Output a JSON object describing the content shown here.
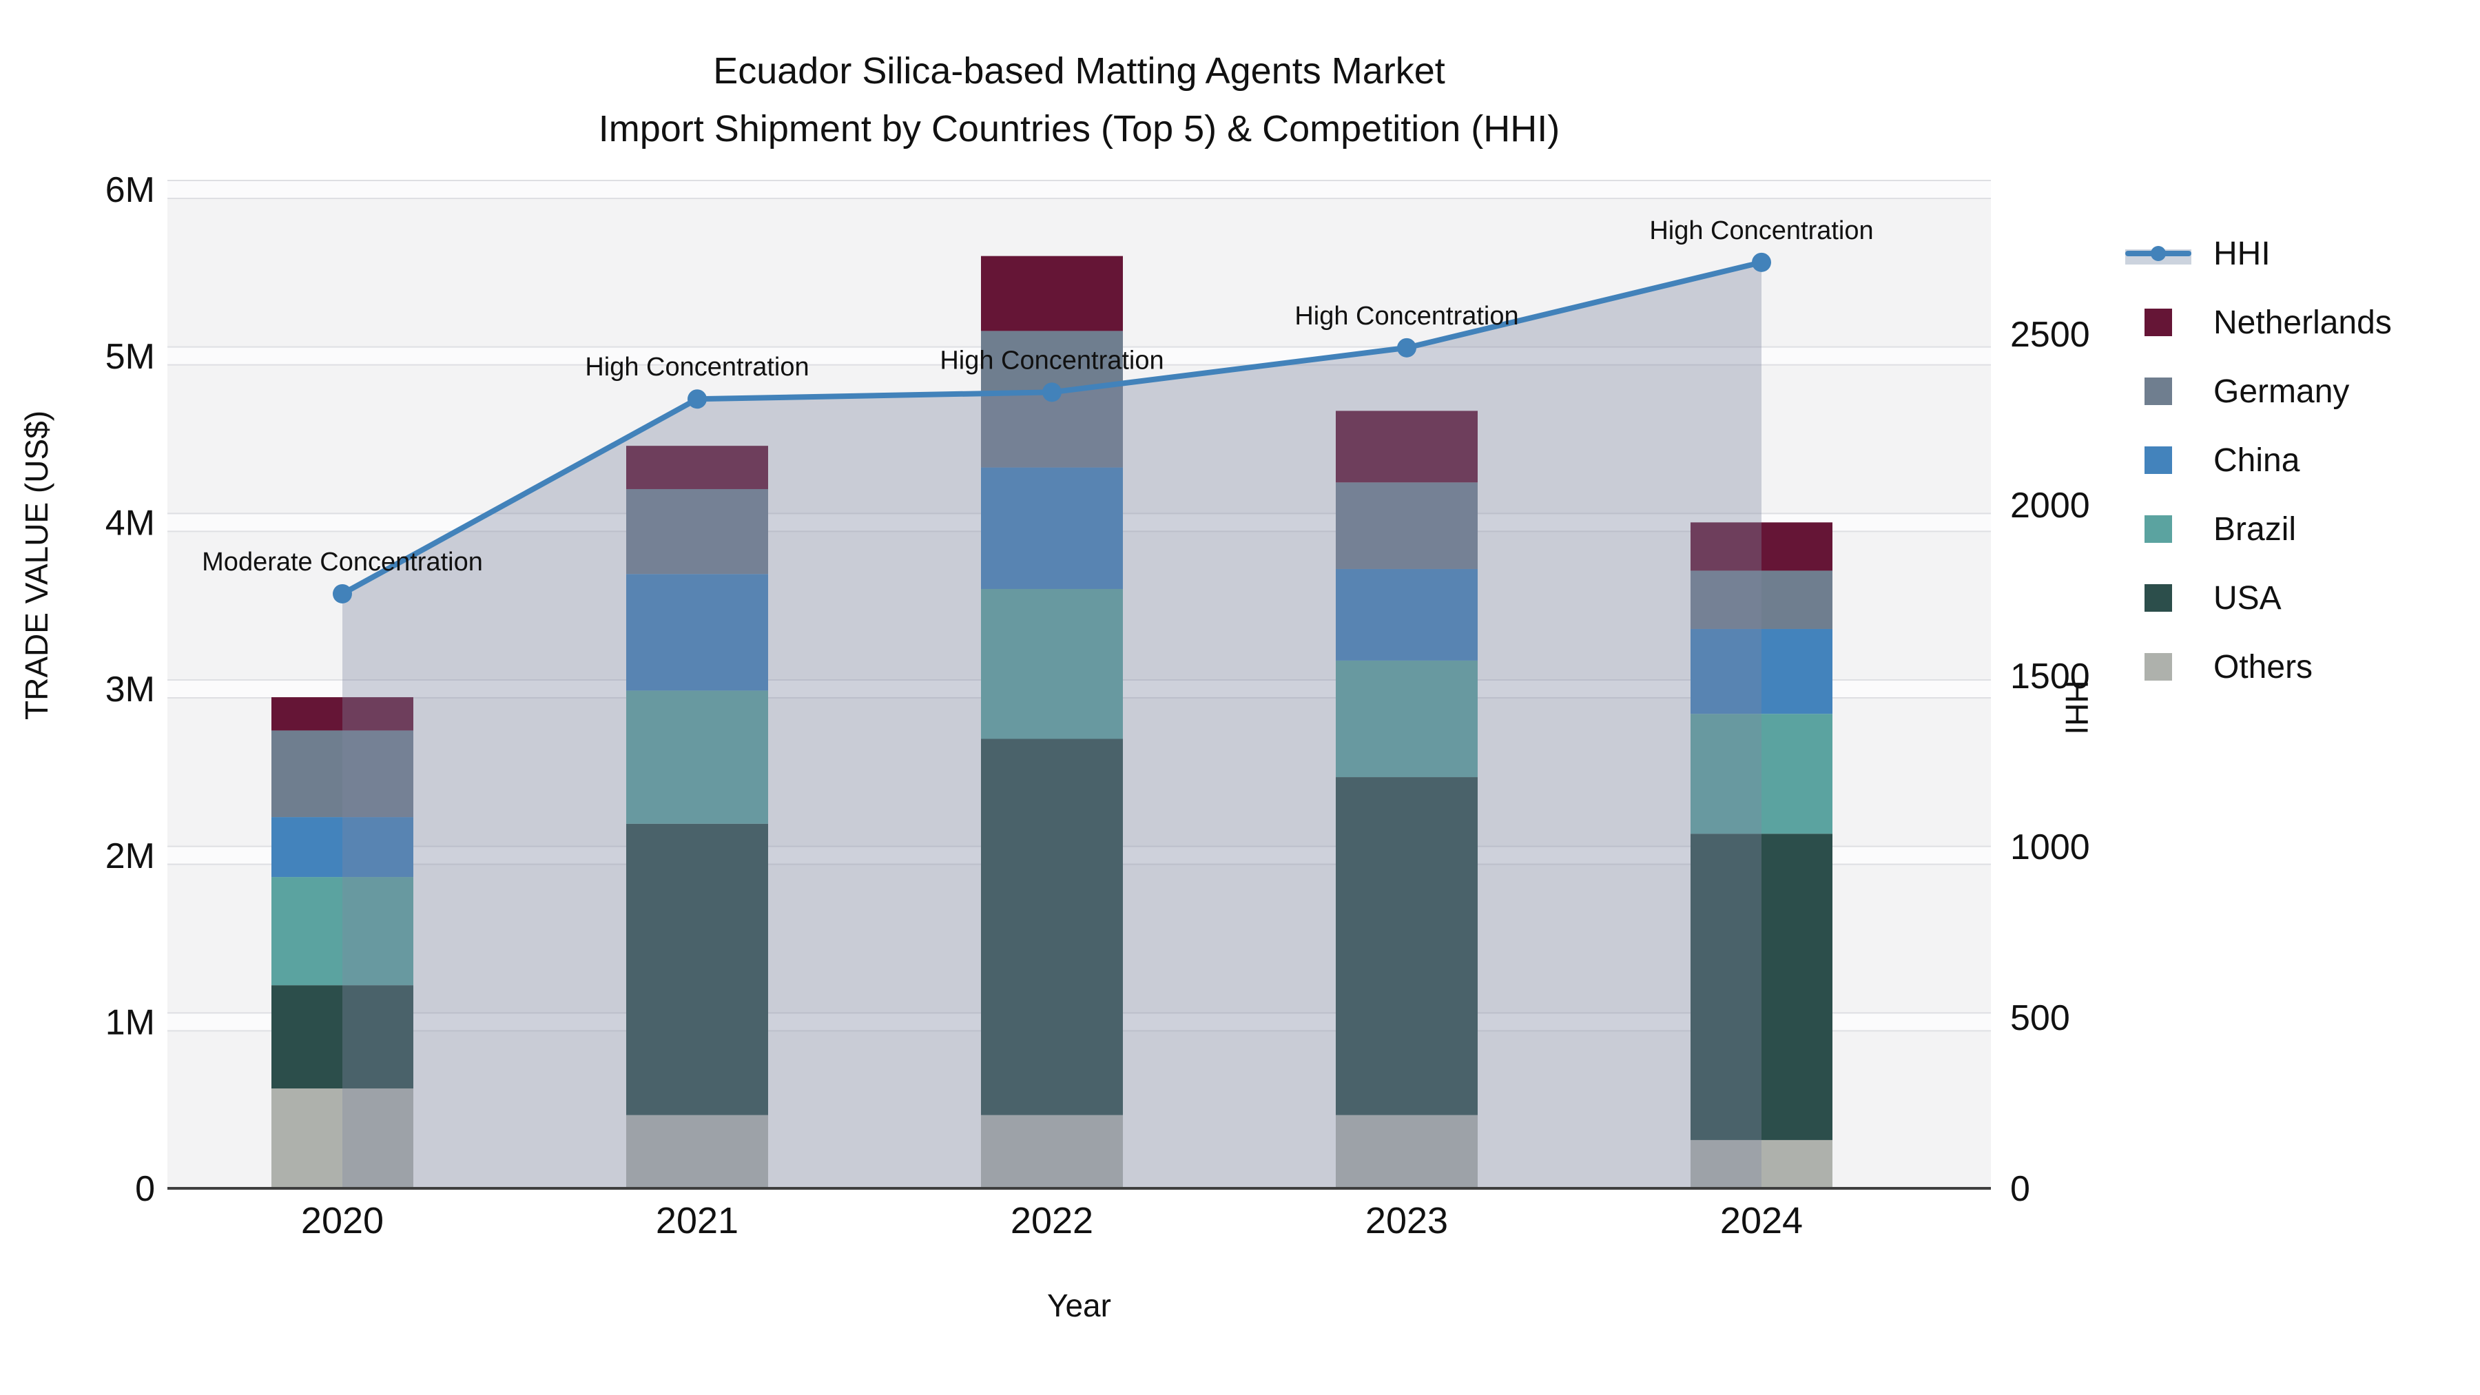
{
  "title": {
    "line1": "Ecuador Silica-based Matting Agents Market",
    "line2": "Import Shipment by Countries (Top 5) & Competition (HHI)"
  },
  "chart_data": {
    "type": "bar",
    "stacked": true,
    "categories": [
      "2020",
      "2021",
      "2022",
      "2023",
      "2024"
    ],
    "value_unit": "US$ (millions)",
    "series": [
      {
        "name": "Others",
        "color": "#aeb1ac",
        "values": [
          0.6,
          0.44,
          0.44,
          0.44,
          0.29
        ]
      },
      {
        "name": "USA",
        "color": "#2c4e4b",
        "values": [
          0.62,
          1.75,
          2.26,
          2.03,
          1.84
        ]
      },
      {
        "name": "Brazil",
        "color": "#5ba3a0",
        "values": [
          0.65,
          0.8,
          0.9,
          0.7,
          0.72
        ]
      },
      {
        "name": "China",
        "color": "#4383bc",
        "values": [
          0.36,
          0.7,
          0.73,
          0.55,
          0.51
        ]
      },
      {
        "name": "Germany",
        "color": "#6f7e8f",
        "values": [
          0.52,
          0.51,
          0.82,
          0.52,
          0.35
        ]
      },
      {
        "name": "Netherlands",
        "color": "#651536",
        "values": [
          0.2,
          0.26,
          0.45,
          0.43,
          0.29
        ]
      }
    ],
    "bar_totals": [
      2.95,
      4.46,
      5.6,
      4.67,
      4.0
    ],
    "line_series": {
      "name": "HHI",
      "axis": "right",
      "color": "#4282ba",
      "area_fill": "rgba(128,136,162,0.36)",
      "values": [
        1740,
        2310,
        2330,
        2460,
        2710
      ]
    },
    "annotations": [
      {
        "category": "2020",
        "text": "Moderate Concentration"
      },
      {
        "category": "2021",
        "text": "High Concentration"
      },
      {
        "category": "2022",
        "text": "High Concentration"
      },
      {
        "category": "2023",
        "text": "High Concentration"
      },
      {
        "category": "2024",
        "text": "High Concentration"
      }
    ],
    "axes": {
      "left": {
        "title": "TRADE VALUE (US$)",
        "tick_labels": [
          "0",
          "1M",
          "2M",
          "3M",
          "4M",
          "5M",
          "6M"
        ],
        "range": [
          0,
          6
        ]
      },
      "right": {
        "title": "HHI",
        "tick_labels": [
          "0",
          "500",
          "1000",
          "1500",
          "2000",
          "2500"
        ],
        "range": [
          0,
          2920
        ]
      },
      "bottom": {
        "title": "Year"
      }
    },
    "grid": true,
    "legend_position": "right"
  },
  "legend": {
    "items": [
      {
        "label": "HHI",
        "swatch": "line",
        "color": "#4282ba"
      },
      {
        "label": "Netherlands",
        "swatch": "square",
        "color": "#651536"
      },
      {
        "label": "Germany",
        "swatch": "square",
        "color": "#6f7e8f"
      },
      {
        "label": "China",
        "swatch": "square",
        "color": "#4383bc"
      },
      {
        "label": "Brazil",
        "swatch": "square",
        "color": "#5ba3a0"
      },
      {
        "label": "USA",
        "swatch": "square",
        "color": "#2c4e4b"
      },
      {
        "label": "Others",
        "swatch": "square",
        "color": "#aeb1ac"
      }
    ]
  },
  "colors": {
    "plot_bg": "#f3f3f4",
    "grid_band": "#fbfbfc",
    "grid_edge": "#dedfe3",
    "axis_line": "#3f3f3f",
    "text": "#111111"
  }
}
